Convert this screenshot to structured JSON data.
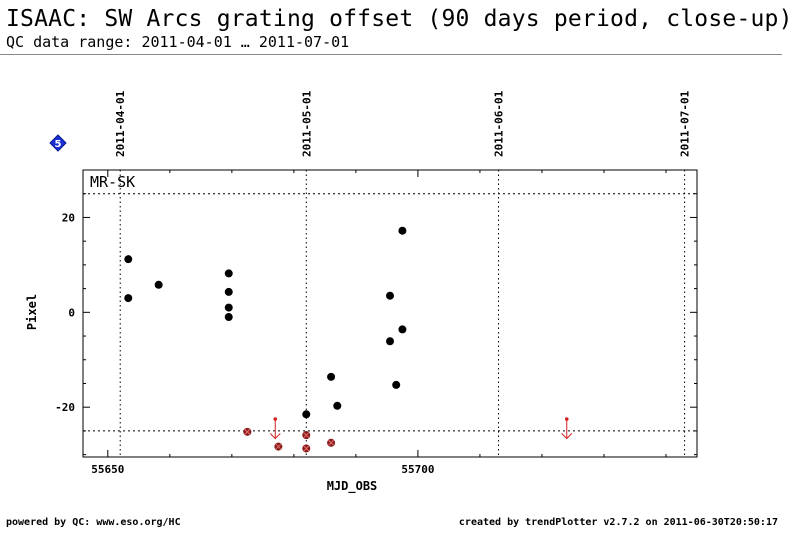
{
  "header": {
    "title": "ISAAC: SW Arcs grating offset (90 days period, close-up)",
    "subtitle": "QC data range: 2011-04-01 … 2011-07-01"
  },
  "badge": {
    "label": "5",
    "icon": "diamond-badge-icon",
    "fill": "#1a2fd6",
    "text_color": "#ffffff"
  },
  "footer": {
    "left": "powered by QC: www.eso.org/HC",
    "right": "created by trendPlotter v2.7.2 on 2011-06-30T20:50:17"
  },
  "chart_data": {
    "type": "scatter",
    "panel_label": "MR-SK",
    "xlabel": "MJD_OBS",
    "ylabel": "Pixel",
    "xlim": [
      55646,
      55745
    ],
    "ylim": [
      -30.5,
      30
    ],
    "x_ticks": [
      55650,
      55700
    ],
    "y_ticks": [
      -20,
      0,
      20
    ],
    "grid": false,
    "date_markers": [
      {
        "mjd": 55652,
        "label": "2011-04-01"
      },
      {
        "mjd": 55682,
        "label": "2011-05-01"
      },
      {
        "mjd": 55713,
        "label": "2011-06-01"
      },
      {
        "mjd": 55743,
        "label": "2011-07-01"
      }
    ],
    "thresholds": [
      25,
      -25
    ],
    "colors": {
      "in_range": "#000000",
      "out_of_range": "#8b1a1a",
      "arrow": "#d42020",
      "dotted": "#000000"
    },
    "series": [
      {
        "points": [
          {
            "x": 55653.3,
            "y": 11.2
          },
          {
            "x": 55653.3,
            "y": 3.0
          },
          {
            "x": 55658.2,
            "y": 5.8
          },
          {
            "x": 55669.5,
            "y": 8.2
          },
          {
            "x": 55669.5,
            "y": 4.3
          },
          {
            "x": 55669.5,
            "y": 1.0
          },
          {
            "x": 55669.5,
            "y": -1.0
          },
          {
            "x": 55682.0,
            "y": -21.5
          },
          {
            "x": 55686.0,
            "y": -13.6
          },
          {
            "x": 55687.0,
            "y": -19.7
          },
          {
            "x": 55695.5,
            "y": 3.5
          },
          {
            "x": 55695.5,
            "y": -6.1
          },
          {
            "x": 55696.5,
            "y": -15.3
          },
          {
            "x": 55697.5,
            "y": 17.2
          },
          {
            "x": 55697.5,
            "y": -3.6
          }
        ]
      },
      {
        "points": [
          {
            "x": 55672.5,
            "y": -25.2
          },
          {
            "x": 55677.5,
            "y": -28.3
          },
          {
            "x": 55682.0,
            "y": -25.9
          },
          {
            "x": 55682.0,
            "y": -28.7
          },
          {
            "x": 55686.0,
            "y": -27.5
          }
        ]
      }
    ],
    "outlier_arrows": [
      {
        "x": 55677.0
      },
      {
        "x": 55724.0
      }
    ]
  }
}
